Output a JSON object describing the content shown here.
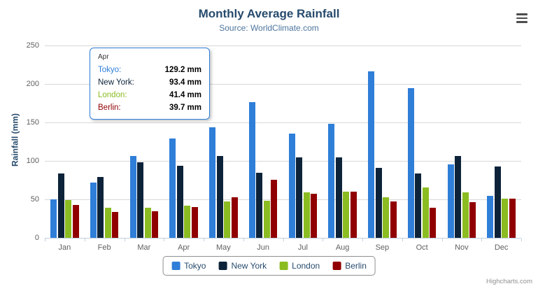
{
  "chart_data": {
    "type": "bar",
    "title": "Monthly Average Rainfall",
    "subtitle": "Source: WorldClimate.com",
    "categories": [
      "Jan",
      "Feb",
      "Mar",
      "Apr",
      "May",
      "Jun",
      "Jul",
      "Aug",
      "Sep",
      "Oct",
      "Nov",
      "Dec"
    ],
    "series": [
      {
        "name": "Tokyo",
        "color": "#2f7ed8",
        "values": [
          49.9,
          71.5,
          106.4,
          129.2,
          144.0,
          176.0,
          135.6,
          148.5,
          216.4,
          194.1,
          95.6,
          54.4
        ]
      },
      {
        "name": "New York",
        "color": "#0d233a",
        "values": [
          83.6,
          78.8,
          98.5,
          93.4,
          106.0,
          84.5,
          105.0,
          104.3,
          91.2,
          83.5,
          106.6,
          92.3
        ]
      },
      {
        "name": "London",
        "color": "#8bbc21",
        "values": [
          48.9,
          38.8,
          39.3,
          41.4,
          47.0,
          48.3,
          59.0,
          59.6,
          52.4,
          65.2,
          59.3,
          51.2
        ]
      },
      {
        "name": "Berlin",
        "color": "#910000",
        "values": [
          42.4,
          33.2,
          34.5,
          39.7,
          52.6,
          75.5,
          57.4,
          60.4,
          47.6,
          39.1,
          46.8,
          51.1
        ]
      }
    ],
    "xlabel": "",
    "ylabel": "Rainfall (mm)",
    "ylim": [
      0,
      250
    ],
    "y_ticks": [
      0,
      50,
      100,
      150,
      200,
      250
    ],
    "grid": true,
    "legend_position": "bottom-center"
  },
  "tooltip": {
    "category": "Apr",
    "border_color": "#2f7ed8",
    "rows": [
      {
        "label": "Tokyo:",
        "value": "129.2 mm",
        "color": "#2f7ed8"
      },
      {
        "label": "New York:",
        "value": "93.4 mm",
        "color": "#0d233a"
      },
      {
        "label": "London:",
        "value": "41.4 mm",
        "color": "#8bbc21"
      },
      {
        "label": "Berlin:",
        "value": "39.7 mm",
        "color": "#910000"
      }
    ]
  },
  "legend": {
    "items": [
      "Tokyo",
      "New York",
      "London",
      "Berlin"
    ]
  },
  "credits": {
    "label": "Highcharts.com"
  },
  "icons": {
    "menu": "hamburger-icon"
  }
}
